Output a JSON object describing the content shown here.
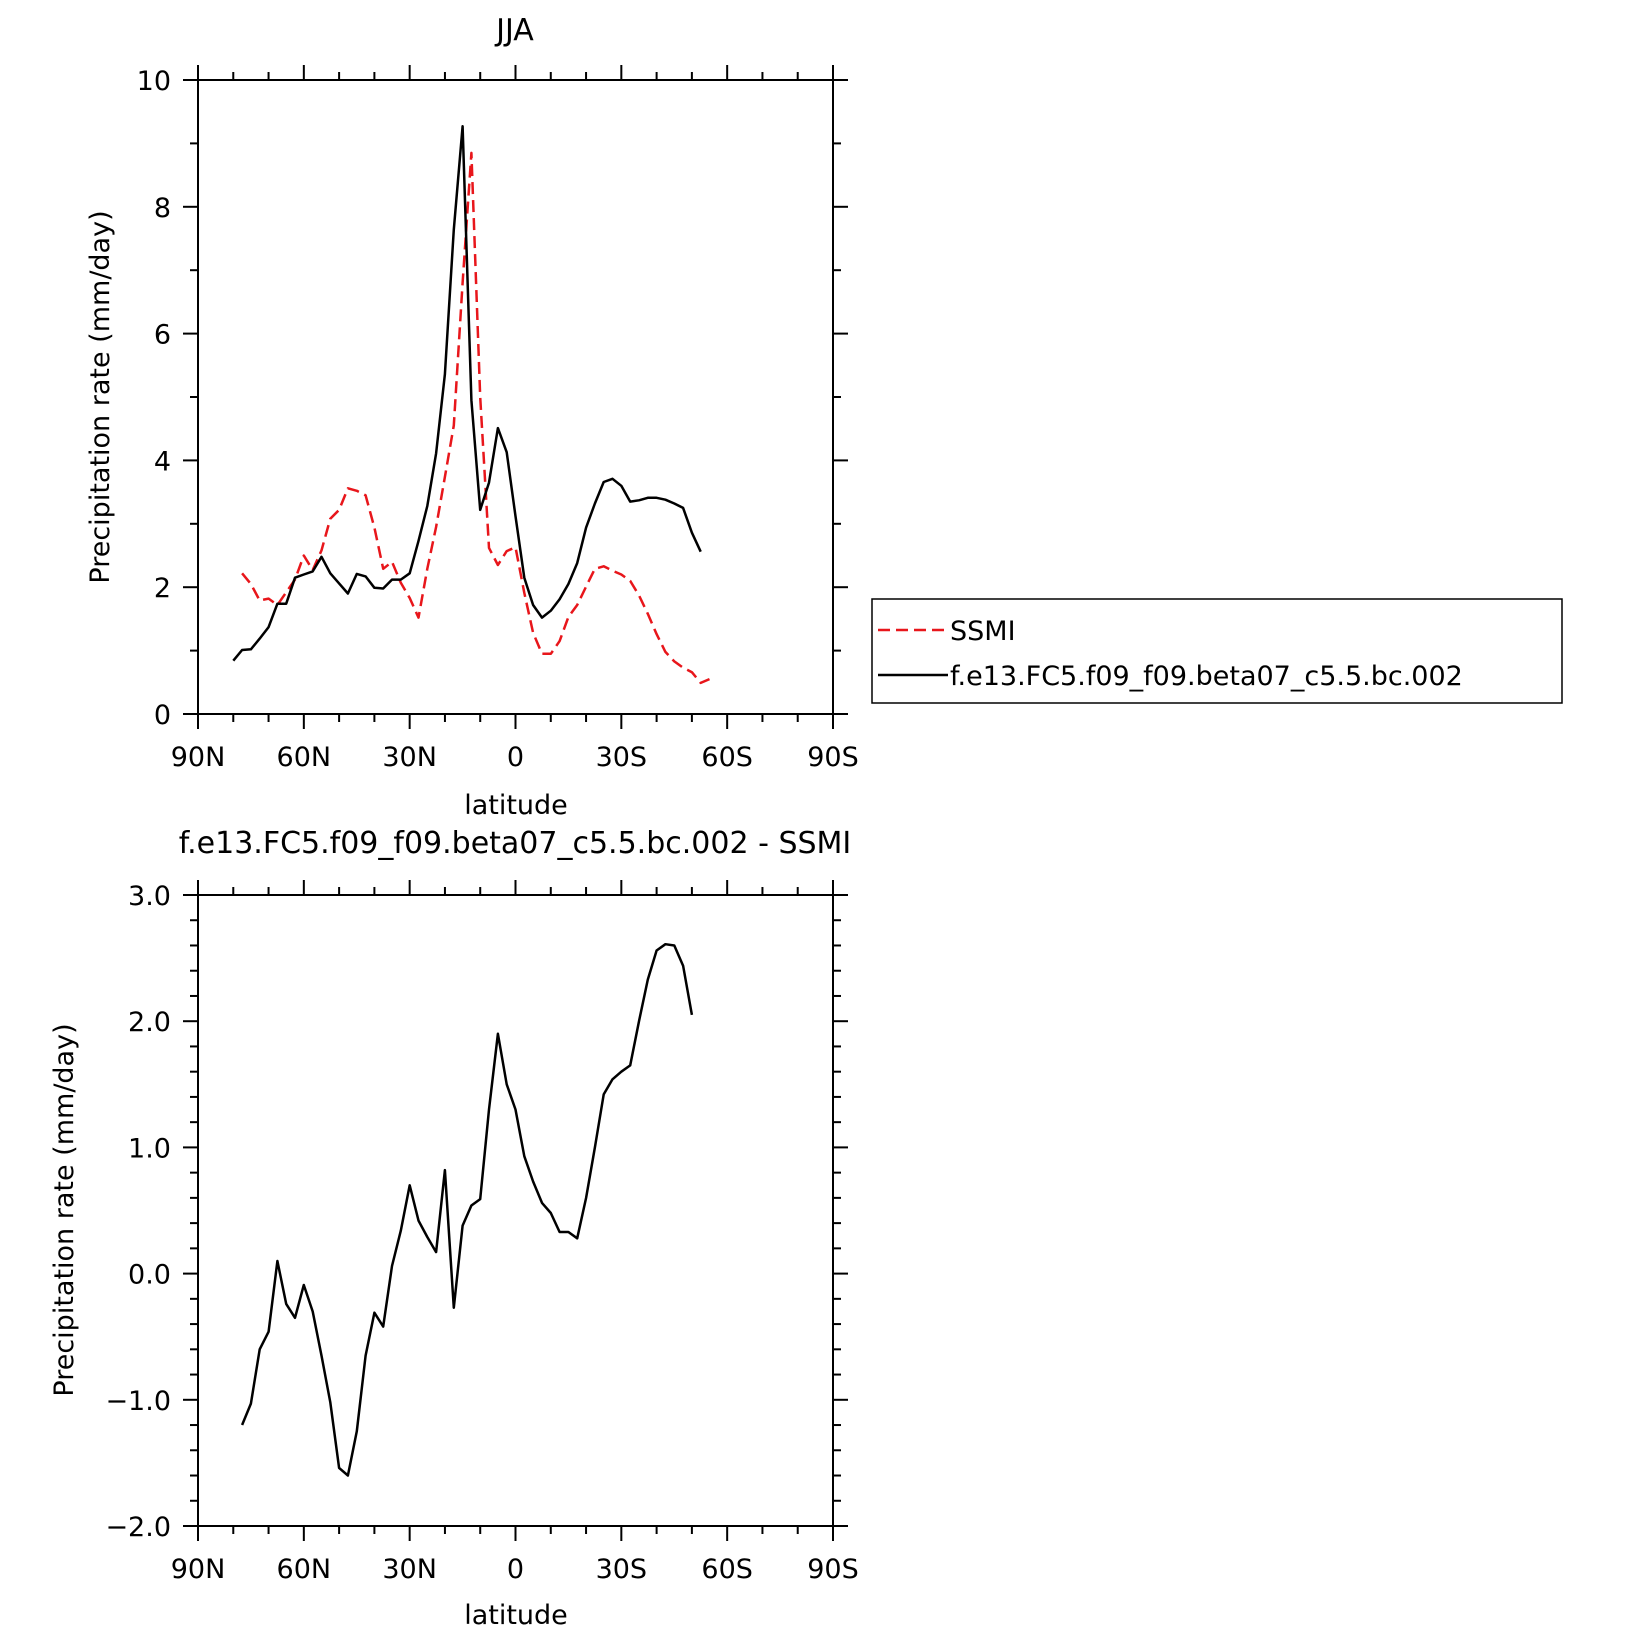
{
  "chart_data": [
    {
      "type": "line",
      "title": "JJA",
      "xlabel": "latitude",
      "ylabel": "Precipitation rate (mm/day)",
      "xlim": [
        90,
        -90
      ],
      "ylim": [
        0,
        10
      ],
      "grid": false,
      "legend_position": "right",
      "xticks": [
        {
          "value": 90,
          "label": "90N"
        },
        {
          "value": 60,
          "label": "60N"
        },
        {
          "value": 30,
          "label": "30N"
        },
        {
          "value": 0,
          "label": "0"
        },
        {
          "value": -30,
          "label": "30S"
        },
        {
          "value": -60,
          "label": "60S"
        },
        {
          "value": -90,
          "label": "90S"
        }
      ],
      "yticks": [
        {
          "value": 0,
          "label": "0"
        },
        {
          "value": 2,
          "label": "2"
        },
        {
          "value": 4,
          "label": "4"
        },
        {
          "value": 6,
          "label": "6"
        },
        {
          "value": 8,
          "label": "8"
        },
        {
          "value": 10,
          "label": "10"
        }
      ],
      "series": [
        {
          "name": "SSMI",
          "color": "#e8161b",
          "dash": true,
          "x": [
            77.5,
            75,
            72.5,
            70,
            67.5,
            65,
            62.5,
            60,
            57.5,
            55,
            52.5,
            50,
            47.5,
            45,
            42.5,
            40,
            37.5,
            35,
            32.5,
            30,
            27.5,
            25,
            22.5,
            20,
            17.5,
            15,
            12.5,
            10,
            7.5,
            5,
            2.5,
            0,
            -2.5,
            -5,
            -7.5,
            -10,
            -12.5,
            -15,
            -17.5,
            -20,
            -22.5,
            -25,
            -27.5,
            -30,
            -32.5,
            -35,
            -37.5,
            -40,
            -42.5,
            -45,
            -47.5,
            -50,
            -52.5,
            -55,
            -57.5,
            -60,
            -62.5,
            -65,
            -67.5
          ],
          "y": [
            2.22,
            2.05,
            1.79,
            1.82,
            1.72,
            1.92,
            2.12,
            2.5,
            2.27,
            2.58,
            3.08,
            3.22,
            3.56,
            3.52,
            3.45,
            2.94,
            2.29,
            2.4,
            2.07,
            1.83,
            1.52,
            2.29,
            2.95,
            3.74,
            4.55,
            6.8,
            8.85,
            5.0,
            2.62,
            2.35,
            2.57,
            2.63,
            1.91,
            1.28,
            0.95,
            0.95,
            1.15,
            1.53,
            1.72,
            2.01,
            2.29,
            2.33,
            2.26,
            2.2,
            2.1,
            1.87,
            1.58,
            1.26,
            0.98,
            0.83,
            0.73,
            0.66,
            0.49,
            0.55,
            null,
            null,
            null,
            null,
            null
          ]
        },
        {
          "name": "f.e13.FC5.f09_f09.beta07_c5.5.bc.002",
          "color": "#000000",
          "dash": false,
          "x": [
            80,
            77.5,
            75,
            72.5,
            70,
            67.5,
            65,
            62.5,
            60,
            57.5,
            55,
            52.5,
            50,
            47.5,
            45,
            42.5,
            40,
            37.5,
            35,
            32.5,
            30,
            27.5,
            25,
            22.5,
            20,
            17.5,
            15,
            12.5,
            10,
            7.5,
            5,
            2.5,
            0,
            -2.5,
            -5,
            -7.5,
            -10,
            -12.5,
            -15,
            -17.5,
            -20,
            -22.5,
            -25,
            -27.5,
            -30,
            -32.5,
            -35,
            -37.5,
            -40,
            -42.5,
            -45,
            -47.5,
            -50,
            -52.5,
            -55,
            -57.5,
            -60,
            -62.5,
            -65,
            -67.5
          ],
          "y": [
            0.84,
            1.01,
            1.02,
            1.19,
            1.37,
            1.74,
            1.74,
            2.15,
            2.2,
            2.25,
            2.48,
            2.22,
            2.06,
            1.9,
            2.21,
            2.17,
            1.99,
            1.98,
            2.12,
            2.12,
            2.22,
            2.73,
            3.28,
            4.11,
            5.36,
            7.64,
            9.27,
            4.95,
            3.22,
            3.65,
            4.51,
            4.13,
            3.12,
            2.15,
            1.72,
            1.52,
            1.63,
            1.81,
            2.05,
            2.38,
            2.94,
            3.32,
            3.66,
            3.71,
            3.6,
            3.35,
            3.37,
            3.41,
            3.41,
            3.38,
            3.32,
            3.25,
            2.86,
            2.56,
            null,
            null,
            null,
            null,
            null,
            null
          ]
        }
      ]
    },
    {
      "type": "line",
      "title": "f.e13.FC5.f09_f09.beta07_c5.5.bc.002 - SSMI",
      "xlabel": "latitude",
      "ylabel": "Precipitation rate (mm/day)",
      "xlim": [
        90,
        -90
      ],
      "ylim": [
        -2.0,
        3.0
      ],
      "grid": false,
      "xticks": [
        {
          "value": 90,
          "label": "90N"
        },
        {
          "value": 60,
          "label": "60N"
        },
        {
          "value": 30,
          "label": "30N"
        },
        {
          "value": 0,
          "label": "0"
        },
        {
          "value": -30,
          "label": "30S"
        },
        {
          "value": -60,
          "label": "60S"
        },
        {
          "value": -90,
          "label": "90S"
        }
      ],
      "yticks": [
        {
          "value": -2.0,
          "label": "−2.0"
        },
        {
          "value": -1.0,
          "label": "−1.0"
        },
        {
          "value": 0.0,
          "label": "0.0"
        },
        {
          "value": 1.0,
          "label": "1.0"
        },
        {
          "value": 2.0,
          "label": "2.0"
        },
        {
          "value": 3.0,
          "label": "3.0"
        }
      ],
      "series": [
        {
          "color": "#000000",
          "dash": false,
          "x": [
            77.5,
            75,
            72.5,
            70,
            67.5,
            65,
            62.5,
            60,
            57.5,
            55,
            52.5,
            50,
            47.5,
            45,
            42.5,
            40,
            37.5,
            35,
            32.5,
            30,
            27.5,
            25,
            22.5,
            20,
            17.5,
            15,
            12.5,
            10,
            7.5,
            5,
            2.5,
            0,
            -2.5,
            -5,
            -7.5,
            -10,
            -12.5,
            -15,
            -17.5,
            -20,
            -22.5,
            -25,
            -27.5,
            -30,
            -32.5,
            -35,
            -37.5,
            -40,
            -42.5,
            -45,
            -47.5,
            -50,
            -52.5,
            -55,
            -57.5,
            -60,
            -62.5,
            -65,
            -67.5
          ],
          "y": [
            -1.2,
            -1.03,
            -0.6,
            -0.46,
            0.1,
            -0.24,
            -0.35,
            -0.09,
            -0.3,
            -0.65,
            -1.02,
            -1.54,
            -1.6,
            -1.25,
            -0.65,
            -0.31,
            -0.42,
            0.06,
            0.34,
            0.7,
            0.42,
            0.29,
            0.17,
            0.82,
            -0.27,
            0.38,
            0.54,
            0.59,
            1.3,
            1.9,
            1.5,
            1.3,
            0.93,
            0.73,
            0.56,
            0.48,
            0.33,
            0.33,
            0.28,
            0.6,
            1.0,
            1.42,
            1.54,
            1.6,
            1.65,
            2.0,
            2.33,
            2.56,
            2.61,
            2.6,
            2.44,
            2.05,
            null,
            null,
            null,
            null,
            null,
            null,
            null
          ]
        }
      ]
    }
  ]
}
